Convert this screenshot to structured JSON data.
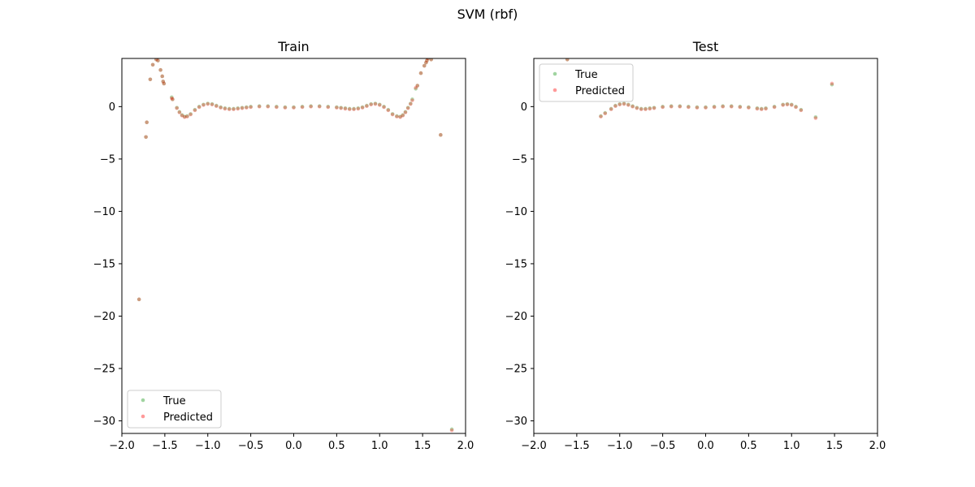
{
  "figure": {
    "suptitle": "SVM (rbf)"
  },
  "colors": {
    "true": "#2ca02c",
    "predicted": "#ff0000",
    "axis": "#000000",
    "legend_border": "#cccccc"
  },
  "chart_data": [
    {
      "type": "scatter",
      "title": "Train",
      "xlabel": "",
      "ylabel": "",
      "xlim": [
        -2.0,
        2.0
      ],
      "ylim": [
        -31.2,
        4.6
      ],
      "xticks": [
        -2.0,
        -1.5,
        -1.0,
        -0.5,
        0.0,
        0.5,
        1.0,
        1.5,
        2.0
      ],
      "xtick_labels": [
        "−2.0",
        "−1.5",
        "−1.0",
        "−0.5",
        "0.0",
        "0.5",
        "1.0",
        "1.5",
        "2.0"
      ],
      "yticks": [
        0,
        -5,
        -10,
        -15,
        -20,
        -25,
        -30
      ],
      "ytick_labels": [
        "0",
        "−5",
        "−10",
        "−15",
        "−20",
        "−25",
        "−30"
      ],
      "grid": false,
      "legend": "lower-left",
      "series": [
        {
          "name": "True",
          "x": [
            -1.8,
            -1.72,
            -1.71,
            -1.67,
            -1.64,
            -1.6,
            -1.58,
            -1.55,
            -1.53,
            -1.52,
            -1.51,
            -1.42,
            -1.41,
            -1.36,
            -1.33,
            -1.3,
            -1.27,
            -1.24,
            -1.2,
            -1.15,
            -1.1,
            -1.05,
            -1.0,
            -0.95,
            -0.9,
            -0.85,
            -0.8,
            -0.75,
            -0.7,
            -0.65,
            -0.6,
            -0.55,
            -0.5,
            -0.4,
            -0.3,
            -0.2,
            -0.1,
            0.0,
            0.1,
            0.2,
            0.3,
            0.4,
            0.5,
            0.55,
            0.6,
            0.65,
            0.7,
            0.75,
            0.8,
            0.85,
            0.9,
            0.95,
            1.0,
            1.05,
            1.1,
            1.15,
            1.2,
            1.24,
            1.27,
            1.3,
            1.33,
            1.36,
            1.38,
            1.42,
            1.44,
            1.48,
            1.52,
            1.54,
            1.55,
            1.56,
            1.6,
            1.71,
            1.84
          ],
          "y": [
            -18.4,
            -2.9,
            -1.5,
            2.6,
            4.0,
            4.5,
            4.4,
            3.5,
            2.9,
            2.4,
            2.2,
            0.9,
            0.7,
            -0.1,
            -0.5,
            -0.8,
            -0.95,
            -0.9,
            -0.7,
            -0.3,
            0.0,
            0.2,
            0.3,
            0.25,
            0.1,
            -0.05,
            -0.15,
            -0.2,
            -0.2,
            -0.15,
            -0.1,
            -0.05,
            0.0,
            0.05,
            0.05,
            0.0,
            -0.05,
            -0.05,
            0.0,
            0.05,
            0.05,
            0.0,
            -0.05,
            -0.1,
            -0.15,
            -0.2,
            -0.2,
            -0.15,
            -0.05,
            0.1,
            0.25,
            0.3,
            0.2,
            0.0,
            -0.3,
            -0.7,
            -0.9,
            -0.95,
            -0.8,
            -0.5,
            -0.1,
            0.3,
            0.7,
            1.7,
            2.0,
            3.2,
            3.9,
            4.2,
            4.4,
            4.6,
            4.5,
            -2.7,
            -30.8
          ]
        },
        {
          "name": "Predicted",
          "x": [
            -1.8,
            -1.72,
            -1.71,
            -1.67,
            -1.64,
            -1.6,
            -1.58,
            -1.55,
            -1.53,
            -1.52,
            -1.51,
            -1.42,
            -1.41,
            -1.36,
            -1.33,
            -1.3,
            -1.27,
            -1.24,
            -1.2,
            -1.15,
            -1.1,
            -1.05,
            -1.0,
            -0.95,
            -0.9,
            -0.85,
            -0.8,
            -0.75,
            -0.7,
            -0.65,
            -0.6,
            -0.55,
            -0.5,
            -0.4,
            -0.3,
            -0.2,
            -0.1,
            0.0,
            0.1,
            0.2,
            0.3,
            0.4,
            0.5,
            0.55,
            0.6,
            0.65,
            0.7,
            0.75,
            0.8,
            0.85,
            0.9,
            0.95,
            1.0,
            1.05,
            1.1,
            1.15,
            1.2,
            1.24,
            1.27,
            1.3,
            1.33,
            1.36,
            1.38,
            1.42,
            1.44,
            1.48,
            1.52,
            1.54,
            1.55,
            1.56,
            1.6,
            1.71,
            1.84
          ],
          "y": [
            -18.4,
            -2.9,
            -1.5,
            2.6,
            4.0,
            4.5,
            4.4,
            3.5,
            2.9,
            2.4,
            2.2,
            0.8,
            0.7,
            -0.15,
            -0.55,
            -0.85,
            -1.0,
            -0.95,
            -0.75,
            -0.35,
            -0.05,
            0.15,
            0.25,
            0.2,
            0.05,
            -0.1,
            -0.2,
            -0.25,
            -0.25,
            -0.2,
            -0.15,
            -0.1,
            -0.05,
            0.0,
            0.0,
            -0.05,
            -0.1,
            -0.1,
            -0.05,
            0.0,
            0.0,
            -0.05,
            -0.1,
            -0.15,
            -0.2,
            -0.25,
            -0.25,
            -0.2,
            -0.1,
            0.05,
            0.2,
            0.25,
            0.15,
            -0.05,
            -0.35,
            -0.75,
            -0.95,
            -1.0,
            -0.85,
            -0.55,
            -0.15,
            0.25,
            0.6,
            1.8,
            2.0,
            3.2,
            3.9,
            4.2,
            4.4,
            4.6,
            4.5,
            -2.7,
            -30.9
          ]
        }
      ]
    },
    {
      "type": "scatter",
      "title": "Test",
      "xlabel": "",
      "ylabel": "",
      "xlim": [
        -2.0,
        2.0
      ],
      "ylim": [
        -31.2,
        4.6
      ],
      "xticks": [
        -2.0,
        -1.5,
        -1.0,
        -0.5,
        0.0,
        0.5,
        1.0,
        1.5,
        2.0
      ],
      "xtick_labels": [
        "−2.0",
        "−1.5",
        "−1.0",
        "−0.5",
        "0.0",
        "0.5",
        "1.0",
        "1.5",
        "2.0"
      ],
      "yticks": [
        0,
        -5,
        -10,
        -15,
        -20,
        -25,
        -30
      ],
      "ytick_labels": [
        "0",
        "−5",
        "−10",
        "−15",
        "−20",
        "−25",
        "−30"
      ],
      "grid": false,
      "legend": "upper-left",
      "series": [
        {
          "name": "True",
          "x": [
            -1.61,
            -1.22,
            -1.17,
            -1.1,
            -1.05,
            -1.0,
            -0.95,
            -0.9,
            -0.85,
            -0.8,
            -0.75,
            -0.7,
            -0.65,
            -0.6,
            -0.5,
            -0.4,
            -0.3,
            -0.2,
            -0.1,
            0.0,
            0.1,
            0.2,
            0.3,
            0.4,
            0.5,
            0.6,
            0.65,
            0.7,
            0.8,
            0.9,
            0.95,
            1.0,
            1.05,
            1.11,
            1.28,
            1.47
          ],
          "y": [
            4.5,
            -0.9,
            -0.6,
            -0.2,
            0.1,
            0.25,
            0.3,
            0.2,
            0.05,
            -0.1,
            -0.2,
            -0.2,
            -0.15,
            -0.1,
            0.0,
            0.05,
            0.05,
            0.0,
            -0.05,
            -0.05,
            0.0,
            0.05,
            0.05,
            0.0,
            -0.05,
            -0.15,
            -0.2,
            -0.15,
            0.0,
            0.2,
            0.25,
            0.2,
            0.0,
            -0.3,
            -1.0,
            2.1
          ]
        },
        {
          "name": "Predicted",
          "x": [
            -1.61,
            -1.22,
            -1.17,
            -1.1,
            -1.05,
            -1.0,
            -0.95,
            -0.9,
            -0.85,
            -0.8,
            -0.75,
            -0.7,
            -0.65,
            -0.6,
            -0.5,
            -0.4,
            -0.3,
            -0.2,
            -0.1,
            0.0,
            0.1,
            0.2,
            0.3,
            0.4,
            0.5,
            0.6,
            0.65,
            0.7,
            0.8,
            0.9,
            0.95,
            1.0,
            1.05,
            1.11,
            1.28,
            1.47
          ],
          "y": [
            4.5,
            -0.95,
            -0.65,
            -0.25,
            0.05,
            0.2,
            0.25,
            0.15,
            0.0,
            -0.15,
            -0.25,
            -0.25,
            -0.2,
            -0.15,
            -0.05,
            0.0,
            0.0,
            -0.05,
            -0.1,
            -0.1,
            -0.05,
            0.0,
            0.0,
            -0.05,
            -0.1,
            -0.2,
            -0.25,
            -0.2,
            -0.05,
            0.15,
            0.2,
            0.15,
            -0.05,
            -0.35,
            -1.1,
            2.2
          ]
        }
      ]
    }
  ]
}
